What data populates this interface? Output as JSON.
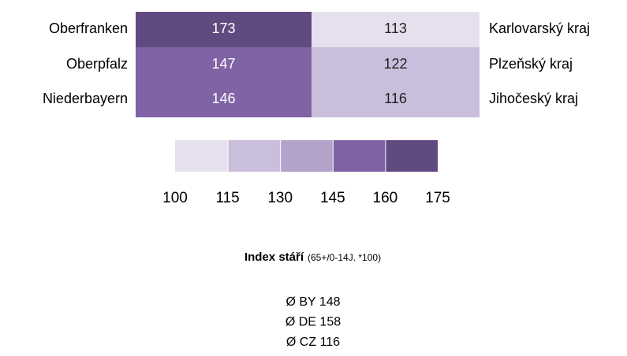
{
  "chart_data": {
    "type": "heatmap",
    "left_labels": [
      "Oberfranken",
      "Oberpfalz",
      "Niederbayern"
    ],
    "right_labels": [
      "Karlovarský kraj",
      "Plzeňský  kraj",
      "Jihočeský kraj"
    ],
    "values": [
      [
        173,
        113
      ],
      [
        147,
        122
      ],
      [
        146,
        116
      ]
    ],
    "scale": {
      "bins": [
        100,
        115,
        130,
        145,
        160,
        175
      ],
      "colors": [
        "#e6e0ee",
        "#c9bfdc",
        "#b3a2c9",
        "#7f63a4",
        "#614a80"
      ]
    },
    "title": "Index stáří",
    "subtitle": "(65+/0-14J. *100)",
    "annotations": [
      "Ø BY 148",
      "Ø DE 158",
      "Ø CZ 116"
    ]
  }
}
